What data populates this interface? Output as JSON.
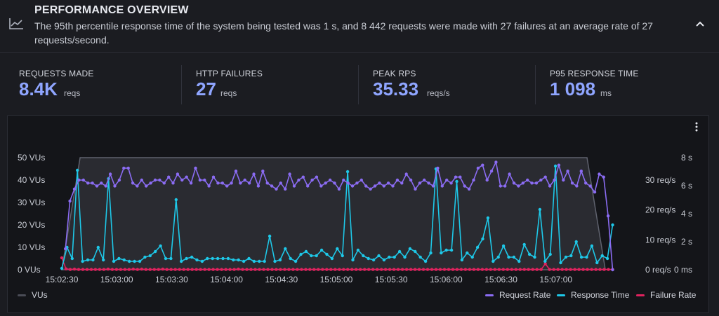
{
  "header": {
    "title": "PERFORMANCE OVERVIEW",
    "summary": "The 95th percentile response time of the system being tested was 1 s, and 8 442 requests were made with 27 failures at an average rate of 27 requests/second.",
    "icon": "line-chart-icon",
    "collapse_icon": "chevron-up-icon"
  },
  "stats": [
    {
      "label": "REQUESTS MADE",
      "value": "8.4K",
      "unit": "reqs"
    },
    {
      "label": "HTTP FAILURES",
      "value": "27",
      "unit": "reqs"
    },
    {
      "label": "PEAK RPS",
      "value": "35.33",
      "unit": "reqs/s"
    },
    {
      "label": "P95 RESPONSE TIME",
      "value": "1 098",
      "unit": "ms"
    }
  ],
  "colors": {
    "accent": "#8fa5ff",
    "vus": "#6e7180",
    "request_rate": "#8b6cf3",
    "response_time": "#1ec8e8",
    "failure_rate": "#e0225e"
  },
  "chart_data": {
    "type": "line",
    "menu_icon": "more-vertical-icon",
    "x_ticks": [
      "15:02:30",
      "15:03:00",
      "15:03:30",
      "15:04:00",
      "15:04:30",
      "15:05:00",
      "15:05:30",
      "15:06:00",
      "15:06:30",
      "15:07:00"
    ],
    "y_left_ticks": [
      "0 VUs",
      "10 VUs",
      "20 VUs",
      "30 VUs",
      "40 VUs",
      "50 VUs"
    ],
    "y_left_range": [
      0,
      50
    ],
    "y_rate_ticks": [
      "0 req/s",
      "10 req/s",
      "20 req/s",
      "30 req/s"
    ],
    "y_rate_range": [
      0,
      37.5
    ],
    "y_time_ticks": [
      "0 ms",
      "2 s",
      "4 s",
      "6 s",
      "8 s"
    ],
    "y_time_range": [
      0,
      8
    ],
    "x_range_seconds": [
      -5,
      315
    ],
    "series": [
      {
        "name": "VUs",
        "points": [
          [
            0,
            0
          ],
          [
            10,
            50
          ],
          [
            287,
            50
          ],
          [
            297,
            0
          ]
        ]
      },
      {
        "name": "Request Rate",
        "values": [
          7,
          23,
          27,
          30,
          30,
          29,
          29,
          28,
          29,
          28,
          32,
          28,
          30,
          34,
          34,
          29,
          28,
          30,
          28,
          29,
          30,
          30,
          29,
          31,
          29,
          32,
          30,
          31,
          29,
          34,
          30,
          30,
          28,
          31,
          29,
          29,
          28,
          29,
          33,
          29,
          30,
          29,
          32,
          28,
          33,
          29,
          28,
          27,
          29,
          27,
          32,
          28,
          30,
          31,
          28,
          30,
          31,
          28,
          29,
          30,
          29,
          27,
          30,
          29,
          28,
          29,
          30,
          28,
          27,
          28,
          29,
          28,
          29,
          28,
          30,
          29,
          32,
          30,
          27,
          29,
          30,
          29,
          28,
          34,
          28,
          30,
          29,
          31,
          31,
          28,
          27,
          30,
          34,
          35,
          30,
          33,
          36,
          28,
          28,
          32,
          29,
          28,
          29,
          30,
          29,
          29,
          30,
          31,
          28,
          30,
          35,
          30,
          33,
          29,
          28,
          33,
          29,
          28,
          26,
          32,
          31,
          18,
          0
        ]
      },
      {
        "name": "Response Time",
        "values": [
          0.1,
          1.6,
          0.8,
          7.1,
          0.6,
          0.7,
          0.7,
          1.6,
          0.7,
          6.5,
          0.6,
          0.8,
          0.7,
          0.6,
          0.6,
          0.6,
          0.9,
          1.0,
          1.3,
          1.7,
          0.8,
          0.8,
          5.0,
          0.6,
          0.8,
          0.9,
          0.7,
          0.6,
          0.8,
          0.8,
          0.8,
          0.8,
          0.8,
          0.7,
          0.7,
          0.6,
          0.8,
          0.6,
          0.6,
          0.6,
          2.4,
          0.6,
          0.7,
          1.5,
          0.8,
          0.6,
          1.1,
          1.3,
          1.0,
          1.0,
          1.4,
          1.1,
          0.8,
          1.5,
          1.0,
          7.0,
          0.7,
          1.4,
          1.0,
          0.8,
          0.7,
          1.0,
          0.7,
          0.9,
          0.9,
          1.3,
          0.9,
          1.5,
          1.3,
          0.9,
          0.6,
          1.2,
          7.2,
          1.2,
          1.4,
          1.4,
          6.3,
          0.7,
          1.2,
          0.9,
          1.6,
          2.2,
          3.7,
          0.6,
          0.9,
          1.7,
          0.9,
          0.9,
          0.6,
          1.8,
          1.1,
          0.9,
          4.3,
          0.6,
          1.1,
          7.4,
          0.5,
          0.9,
          1.0,
          2.0,
          0.9,
          0.9,
          1.7,
          0.5,
          1.0,
          0.8,
          3.2
        ]
      },
      {
        "name": "Failure Rate",
        "values": [
          4,
          0.3,
          0.1,
          0.2,
          0.1,
          0.1,
          0.1,
          0.1,
          0.1,
          0.1,
          0.1,
          0.2,
          0.1,
          0.1,
          0.1,
          0.1,
          0.1,
          0.2,
          0.1,
          0.2,
          0.1,
          0.1,
          0.1,
          0.1,
          0.2,
          0.1,
          0.1,
          0.1,
          0.1,
          0.1,
          0.1,
          0.1,
          0.1,
          0.1,
          0.1,
          0.1,
          0.1,
          0.1,
          0.1,
          0.1,
          0.1,
          0.1,
          0.2,
          0.1,
          0.1,
          0.1,
          0.1,
          0.1,
          0.1,
          0.1,
          0.1,
          0.1,
          0.1,
          0.1,
          0.1,
          0.1,
          0.1,
          0.1,
          0.1,
          0.1,
          0.1,
          0.1,
          0.1,
          0.1,
          0.1,
          0.1,
          0.1,
          0.1,
          0.1,
          0.1,
          0.1,
          0.1,
          0.1,
          0.1,
          0.1,
          0.1,
          0.1,
          0.1,
          0.1,
          0.1,
          0.1,
          0.1,
          0.1,
          0.1,
          0.1,
          0.1,
          0.1,
          0.1,
          0.1,
          0.1,
          0.1,
          0.1,
          0.1,
          0.1,
          0.1,
          0.1,
          0.1,
          0.1,
          0.1,
          0.1,
          0.1,
          0.1,
          0.1,
          0.1,
          0.1,
          0.1,
          0.1,
          0.1,
          0.1,
          0.1,
          0.1,
          0.1,
          0.1,
          0.1,
          0.1,
          2,
          0.1,
          0.1,
          0.1,
          0.1,
          0.1,
          0.1,
          0.1,
          0.1,
          0.1,
          0.1,
          0.1,
          0.1,
          0.1,
          0.1,
          0.1,
          0.1
        ]
      }
    ],
    "legend": [
      "VUs",
      "Request Rate",
      "Response Time",
      "Failure Rate"
    ]
  }
}
